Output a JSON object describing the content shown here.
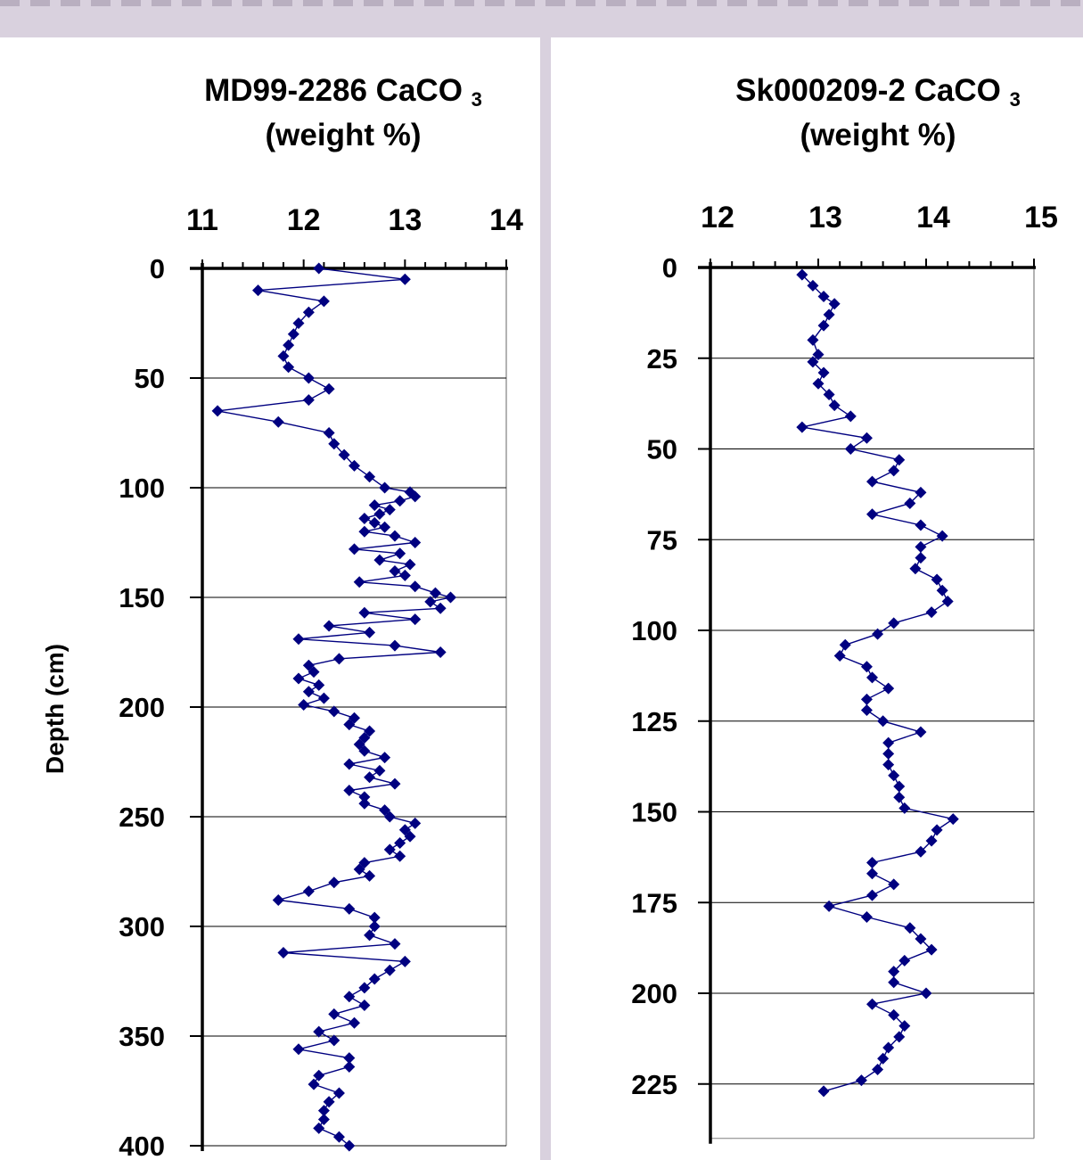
{
  "chart_data": [
    {
      "type": "line",
      "title": "MD99-2286 CaCO",
      "title_subscript": "3",
      "title_line2": "(weight %)",
      "ylabel": "Depth (cm)",
      "xlim": [
        11,
        14
      ],
      "x_ticks": [
        "11",
        "12",
        "13",
        "14"
      ],
      "ylim": [
        0,
        400
      ],
      "y_ticks": [
        "0",
        "50",
        "100",
        "150",
        "200",
        "250",
        "300",
        "350",
        "400"
      ],
      "y_inverted": true,
      "x_axis_position": "top",
      "grid": "horizontal",
      "series_color": "#000080",
      "marker": "diamond",
      "series": [
        {
          "x": [
            12.15,
            13.0,
            11.55,
            12.2,
            12.05,
            11.95,
            11.9,
            11.85,
            11.8,
            11.85,
            12.05,
            12.25,
            12.05,
            11.15,
            11.75,
            12.25,
            12.3,
            12.4,
            12.5,
            12.65,
            12.8,
            13.05,
            13.1,
            12.95,
            12.7,
            12.85,
            12.75,
            12.6,
            12.7,
            12.8,
            12.6,
            12.9,
            13.1,
            12.5,
            12.95,
            12.75,
            13.05,
            12.9,
            13.0,
            12.55,
            13.1,
            13.3,
            13.45,
            13.25,
            13.35,
            12.6,
            13.1,
            12.25,
            12.65,
            11.95,
            12.9,
            13.35,
            12.35,
            12.05,
            12.1,
            11.95,
            12.15,
            12.05,
            12.2,
            12.0,
            12.3,
            12.5,
            12.45,
            12.65,
            12.6,
            12.55,
            12.6,
            12.8,
            12.45,
            12.75,
            12.65,
            12.9,
            12.45,
            12.6,
            12.6,
            12.8,
            12.85,
            13.1,
            13.0,
            13.05,
            12.95,
            12.85,
            12.95,
            12.6,
            12.55,
            12.65,
            12.3,
            12.05,
            11.75,
            12.45,
            12.7,
            12.7,
            12.65,
            12.9,
            11.8,
            13.0,
            12.85,
            12.7,
            12.6,
            12.45,
            12.6,
            12.3,
            12.5,
            12.15,
            12.3,
            11.95,
            12.45,
            12.45,
            12.15,
            12.1,
            12.35,
            12.25,
            12.2,
            12.2,
            12.15,
            12.35,
            12.45
          ],
          "y": [
            0,
            5,
            10,
            15,
            20,
            25,
            30,
            35,
            40,
            45,
            50,
            55,
            60,
            65,
            70,
            75,
            80,
            85,
            90,
            95,
            100,
            102,
            104,
            106,
            108,
            110,
            112,
            114,
            116,
            118,
            120,
            122,
            125,
            128,
            130,
            133,
            135,
            138,
            140,
            143,
            145,
            148,
            150,
            152,
            155,
            157,
            160,
            163,
            166,
            169,
            172,
            175,
            178,
            181,
            184,
            187,
            190,
            193,
            196,
            199,
            202,
            205,
            208,
            211,
            214,
            217,
            220,
            223,
            226,
            229,
            232,
            235,
            238,
            241,
            244,
            247,
            250,
            253,
            256,
            259,
            262,
            265,
            268,
            271,
            274,
            277,
            280,
            284,
            288,
            292,
            296,
            300,
            304,
            308,
            312,
            316,
            320,
            324,
            328,
            332,
            336,
            340,
            344,
            348,
            352,
            356,
            360,
            364,
            368,
            372,
            376,
            380,
            384,
            388,
            392,
            396,
            400
          ]
        }
      ]
    },
    {
      "type": "line",
      "title": "Sk000209-2 CaCO",
      "title_subscript": "3",
      "title_line2": "(weight %)",
      "xlim": [
        12,
        15
      ],
      "x_ticks": [
        "12",
        "13",
        "14",
        "15"
      ],
      "ylim": [
        0,
        240
      ],
      "y_ticks": [
        "0",
        "25",
        "50",
        "75",
        "100",
        "125",
        "150",
        "175",
        "200",
        "225"
      ],
      "y_inverted": true,
      "x_axis_position": "top",
      "grid": "horizontal",
      "series_color": "#000080",
      "marker": "diamond",
      "series": [
        {
          "x": [
            12.85,
            12.95,
            13.05,
            13.15,
            13.1,
            13.05,
            12.95,
            13.0,
            12.95,
            13.05,
            13.0,
            13.1,
            13.15,
            13.3,
            12.85,
            13.45,
            13.3,
            13.75,
            13.7,
            13.5,
            13.95,
            13.85,
            13.5,
            13.95,
            14.15,
            13.95,
            13.95,
            13.9,
            14.1,
            14.15,
            14.2,
            14.05,
            13.7,
            13.55,
            13.25,
            13.2,
            13.45,
            13.5,
            13.65,
            13.45,
            13.45,
            13.6,
            13.95,
            13.65,
            13.65,
            13.65,
            13.7,
            13.75,
            13.75,
            13.8,
            14.25,
            14.1,
            14.05,
            13.95,
            13.5,
            13.5,
            13.7,
            13.5,
            13.1,
            13.45,
            13.85,
            13.95,
            14.05,
            13.8,
            13.7,
            13.7,
            14.0,
            13.5,
            13.7,
            13.8,
            13.75,
            13.65,
            13.6,
            13.55,
            13.4,
            13.05
          ],
          "y": [
            2,
            5,
            8,
            10,
            13,
            16,
            20,
            24,
            26,
            29,
            32,
            35,
            38,
            41,
            44,
            47,
            50,
            53,
            56,
            59,
            62,
            65,
            68,
            71,
            74,
            77,
            80,
            83,
            86,
            89,
            92,
            95,
            98,
            101,
            104,
            107,
            110,
            113,
            116,
            119,
            122,
            125,
            128,
            131,
            134,
            137,
            140,
            143,
            146,
            149,
            152,
            155,
            158,
            161,
            164,
            167,
            170,
            173,
            176,
            179,
            182,
            185,
            188,
            191,
            194,
            197,
            200,
            203,
            206,
            209,
            212,
            215,
            218,
            221,
            224,
            227
          ]
        }
      ]
    }
  ]
}
